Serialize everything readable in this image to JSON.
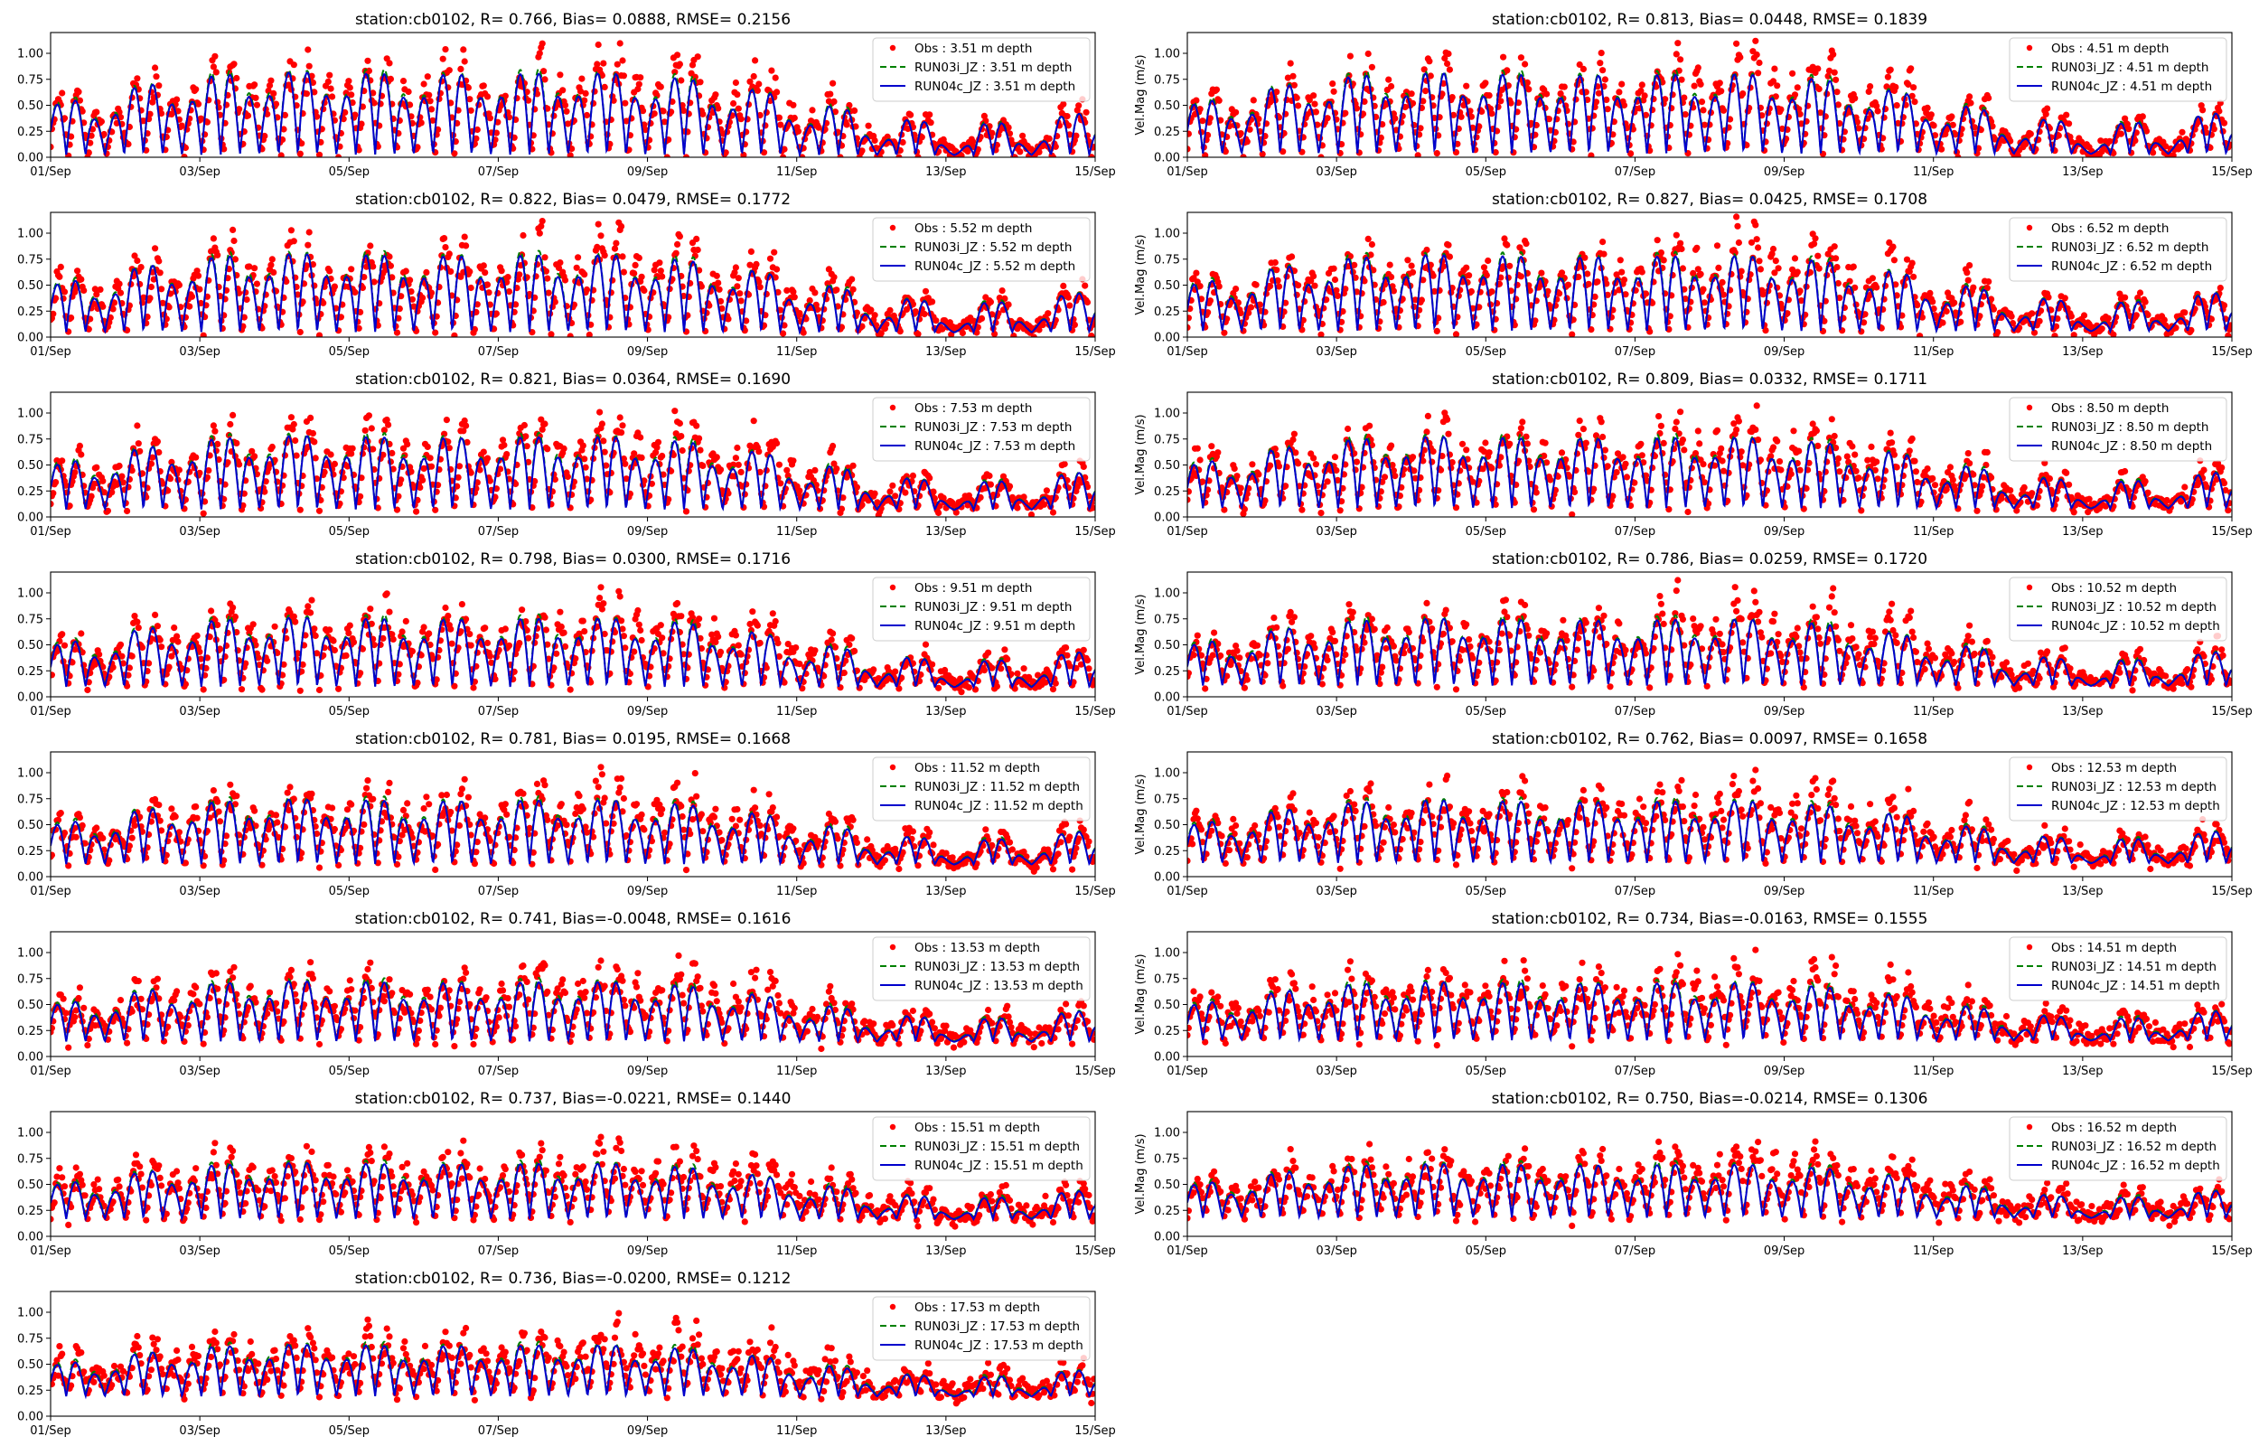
{
  "figure": {
    "ylabel": "Vel.Mag (m/s)",
    "xtick_labels": [
      "01/Sep",
      "03/Sep",
      "05/Sep",
      "07/Sep",
      "09/Sep",
      "11/Sep",
      "13/Sep",
      "15/Sep"
    ],
    "ytick_labels": [
      "0.00",
      "0.25",
      "0.50",
      "0.75",
      "1.00"
    ]
  },
  "chart_data": [
    {
      "type": "line",
      "title": "station:cb0102, R= 0.766, Bias= 0.0888, RMSE= 0.2156",
      "depth": 3.51,
      "xlim": [
        0,
        14
      ],
      "ylim": [
        0,
        1.2
      ],
      "ylabel": "",
      "legend": [
        "Obs : 3.51 m depth",
        "RUN03i_JZ : 3.51 m depth",
        "RUN04c_JZ : 3.51 m depth"
      ],
      "series": [
        {
          "name": "Obs",
          "style": "red dots"
        },
        {
          "name": "RUN03i_JZ",
          "style": "green dashed"
        },
        {
          "name": "RUN04c_JZ",
          "style": "blue solid"
        }
      ]
    },
    {
      "type": "line",
      "title": "station:cb0102, R= 0.813, Bias= 0.0448, RMSE= 0.1839",
      "depth": 4.51,
      "xlim": [
        0,
        14
      ],
      "ylim": [
        0,
        1.2
      ],
      "ylabel": "Vel.Mag (m/s)",
      "legend": [
        "Obs : 4.51 m depth",
        "RUN03i_JZ : 4.51 m depth",
        "RUN04c_JZ : 4.51 m depth"
      ],
      "series": [
        {
          "name": "Obs",
          "style": "red dots"
        },
        {
          "name": "RUN03i_JZ",
          "style": "green dashed"
        },
        {
          "name": "RUN04c_JZ",
          "style": "blue solid"
        }
      ]
    },
    {
      "type": "line",
      "title": "station:cb0102, R= 0.822, Bias= 0.0479, RMSE= 0.1772",
      "depth": 5.52,
      "xlim": [
        0,
        14
      ],
      "ylim": [
        0,
        1.2
      ],
      "ylabel": "",
      "legend": [
        "Obs : 5.52 m depth",
        "RUN03i_JZ : 5.52 m depth",
        "RUN04c_JZ : 5.52 m depth"
      ],
      "series": [
        {
          "name": "Obs",
          "style": "red dots"
        },
        {
          "name": "RUN03i_JZ",
          "style": "green dashed"
        },
        {
          "name": "RUN04c_JZ",
          "style": "blue solid"
        }
      ]
    },
    {
      "type": "line",
      "title": "station:cb0102, R= 0.827, Bias= 0.0425, RMSE= 0.1708",
      "depth": 6.52,
      "xlim": [
        0,
        14
      ],
      "ylim": [
        0,
        1.2
      ],
      "ylabel": "Vel.Mag (m/s)",
      "legend": [
        "Obs : 6.52 m depth",
        "RUN03i_JZ : 6.52 m depth",
        "RUN04c_JZ : 6.52 m depth"
      ],
      "series": [
        {
          "name": "Obs",
          "style": "red dots"
        },
        {
          "name": "RUN03i_JZ",
          "style": "green dashed"
        },
        {
          "name": "RUN04c_JZ",
          "style": "blue solid"
        }
      ]
    },
    {
      "type": "line",
      "title": "station:cb0102, R= 0.821, Bias= 0.0364, RMSE= 0.1690",
      "depth": 7.53,
      "xlim": [
        0,
        14
      ],
      "ylim": [
        0,
        1.2
      ],
      "ylabel": "",
      "legend": [
        "Obs : 7.53 m depth",
        "RUN03i_JZ : 7.53 m depth",
        "RUN04c_JZ : 7.53 m depth"
      ],
      "series": [
        {
          "name": "Obs",
          "style": "red dots"
        },
        {
          "name": "RUN03i_JZ",
          "style": "green dashed"
        },
        {
          "name": "RUN04c_JZ",
          "style": "blue solid"
        }
      ]
    },
    {
      "type": "line",
      "title": "station:cb0102, R= 0.809, Bias= 0.0332, RMSE= 0.1711",
      "depth": 8.5,
      "xlim": [
        0,
        14
      ],
      "ylim": [
        0,
        1.2
      ],
      "ylabel": "Vel.Mag (m/s)",
      "legend": [
        "Obs : 8.50 m depth",
        "RUN03i_JZ : 8.50 m depth",
        "RUN04c_JZ : 8.50 m depth"
      ],
      "series": [
        {
          "name": "Obs",
          "style": "red dots"
        },
        {
          "name": "RUN03i_JZ",
          "style": "green dashed"
        },
        {
          "name": "RUN04c_JZ",
          "style": "blue solid"
        }
      ]
    },
    {
      "type": "line",
      "title": "station:cb0102, R= 0.798, Bias= 0.0300, RMSE= 0.1716",
      "depth": 9.51,
      "xlim": [
        0,
        14
      ],
      "ylim": [
        0,
        1.2
      ],
      "ylabel": "",
      "legend": [
        "Obs : 9.51 m depth",
        "RUN03i_JZ : 9.51 m depth",
        "RUN04c_JZ : 9.51 m depth"
      ],
      "series": [
        {
          "name": "Obs",
          "style": "red dots"
        },
        {
          "name": "RUN03i_JZ",
          "style": "green dashed"
        },
        {
          "name": "RUN04c_JZ",
          "style": "blue solid"
        }
      ]
    },
    {
      "type": "line",
      "title": "station:cb0102, R= 0.786, Bias= 0.0259, RMSE= 0.1720",
      "depth": 10.52,
      "xlim": [
        0,
        14
      ],
      "ylim": [
        0,
        1.2
      ],
      "ylabel": "Vel.Mag (m/s)",
      "legend": [
        "Obs : 10.52 m depth",
        "RUN03i_JZ : 10.52 m depth",
        "RUN04c_JZ : 10.52 m depth"
      ],
      "series": [
        {
          "name": "Obs",
          "style": "red dots"
        },
        {
          "name": "RUN03i_JZ",
          "style": "green dashed"
        },
        {
          "name": "RUN04c_JZ",
          "style": "blue solid"
        }
      ]
    },
    {
      "type": "line",
      "title": "station:cb0102, R= 0.781, Bias= 0.0195, RMSE= 0.1668",
      "depth": 11.52,
      "xlim": [
        0,
        14
      ],
      "ylim": [
        0,
        1.2
      ],
      "ylabel": "",
      "legend": [
        "Obs : 11.52 m depth",
        "RUN03i_JZ : 11.52 m depth",
        "RUN04c_JZ : 11.52 m depth"
      ],
      "series": [
        {
          "name": "Obs",
          "style": "red dots"
        },
        {
          "name": "RUN03i_JZ",
          "style": "green dashed"
        },
        {
          "name": "RUN04c_JZ",
          "style": "blue solid"
        }
      ]
    },
    {
      "type": "line",
      "title": "station:cb0102, R= 0.762, Bias= 0.0097, RMSE= 0.1658",
      "depth": 12.53,
      "xlim": [
        0,
        14
      ],
      "ylim": [
        0,
        1.2
      ],
      "ylabel": "Vel.Mag (m/s)",
      "legend": [
        "Obs : 12.53 m depth",
        "RUN03i_JZ : 12.53 m depth",
        "RUN04c_JZ : 12.53 m depth"
      ],
      "series": [
        {
          "name": "Obs",
          "style": "red dots"
        },
        {
          "name": "RUN03i_JZ",
          "style": "green dashed"
        },
        {
          "name": "RUN04c_JZ",
          "style": "blue solid"
        }
      ]
    },
    {
      "type": "line",
      "title": "station:cb0102, R= 0.741, Bias=-0.0048, RMSE= 0.1616",
      "depth": 13.53,
      "xlim": [
        0,
        14
      ],
      "ylim": [
        0,
        1.2
      ],
      "ylabel": "",
      "legend": [
        "Obs : 13.53 m depth",
        "RUN03i_JZ : 13.53 m depth",
        "RUN04c_JZ : 13.53 m depth"
      ],
      "series": [
        {
          "name": "Obs",
          "style": "red dots"
        },
        {
          "name": "RUN03i_JZ",
          "style": "green dashed"
        },
        {
          "name": "RUN04c_JZ",
          "style": "blue solid"
        }
      ]
    },
    {
      "type": "line",
      "title": "station:cb0102, R= 0.734, Bias=-0.0163, RMSE= 0.1555",
      "depth": 14.51,
      "xlim": [
        0,
        14
      ],
      "ylim": [
        0,
        1.2
      ],
      "ylabel": "Vel.Mag (m/s)",
      "legend": [
        "Obs : 14.51 m depth",
        "RUN03i_JZ : 14.51 m depth",
        "RUN04c_JZ : 14.51 m depth"
      ],
      "series": [
        {
          "name": "Obs",
          "style": "red dots"
        },
        {
          "name": "RUN03i_JZ",
          "style": "green dashed"
        },
        {
          "name": "RUN04c_JZ",
          "style": "blue solid"
        }
      ]
    },
    {
      "type": "line",
      "title": "station:cb0102, R= 0.737, Bias=-0.0221, RMSE= 0.1440",
      "depth": 15.51,
      "xlim": [
        0,
        14
      ],
      "ylim": [
        0,
        1.2
      ],
      "ylabel": "",
      "legend": [
        "Obs : 15.51 m depth",
        "RUN03i_JZ : 15.51 m depth",
        "RUN04c_JZ : 15.51 m depth"
      ],
      "series": [
        {
          "name": "Obs",
          "style": "red dots"
        },
        {
          "name": "RUN03i_JZ",
          "style": "green dashed"
        },
        {
          "name": "RUN04c_JZ",
          "style": "blue solid"
        }
      ]
    },
    {
      "type": "line",
      "title": "station:cb0102, R= 0.750, Bias=-0.0214, RMSE= 0.1306",
      "depth": 16.52,
      "xlim": [
        0,
        14
      ],
      "ylim": [
        0,
        1.2
      ],
      "ylabel": "Vel.Mag (m/s)",
      "legend": [
        "Obs : 16.52 m depth",
        "RUN03i_JZ : 16.52 m depth",
        "RUN04c_JZ : 16.52 m depth"
      ],
      "series": [
        {
          "name": "Obs",
          "style": "red dots"
        },
        {
          "name": "RUN03i_JZ",
          "style": "green dashed"
        },
        {
          "name": "RUN04c_JZ",
          "style": "blue solid"
        }
      ]
    },
    {
      "type": "line",
      "title": "station:cb0102, R= 0.736, Bias=-0.0200, RMSE= 0.1212",
      "depth": 17.53,
      "xlim": [
        0,
        14
      ],
      "ylim": [
        0,
        1.2
      ],
      "ylabel": "",
      "legend": [
        "Obs : 17.53 m depth",
        "RUN03i_JZ : 17.53 m depth",
        "RUN04c_JZ : 17.53 m depth"
      ],
      "series": [
        {
          "name": "Obs",
          "style": "red dots"
        },
        {
          "name": "RUN03i_JZ",
          "style": "green dashed"
        },
        {
          "name": "RUN04c_JZ",
          "style": "blue solid"
        }
      ]
    }
  ]
}
